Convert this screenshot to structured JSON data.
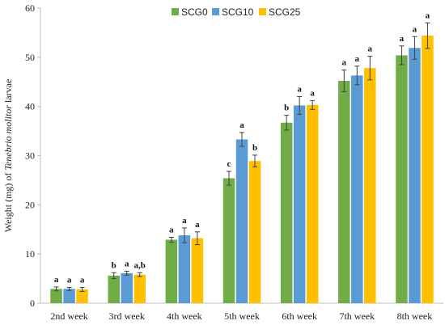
{
  "chart_data": {
    "type": "bar",
    "ylabel_prefix": "Weight (mg) of",
    "ylabel_species": "Tenebrio molitor",
    "ylabel_suffix": "larvae",
    "xlabel": "",
    "ylim": [
      0,
      60
    ],
    "yticks": [
      0,
      10,
      20,
      30,
      40,
      50,
      60
    ],
    "grid": false,
    "legend_position": "top-center",
    "categories": [
      "2nd week",
      "3rd week",
      "4th week",
      "5th week",
      "6th week",
      "7th week",
      "8th week"
    ],
    "series": [
      {
        "name": "SCG0",
        "color": "#70AD47",
        "values": [
          2.9,
          5.6,
          12.9,
          25.4,
          36.7,
          45.2,
          50.4
        ],
        "errors": [
          0.4,
          0.6,
          0.5,
          1.4,
          1.5,
          2.2,
          1.9
        ],
        "labels": [
          "a",
          "b",
          "a",
          "c",
          "b",
          "a",
          "a"
        ]
      },
      {
        "name": "SCG10",
        "color": "#5B9BD5",
        "values": [
          2.9,
          6.1,
          13.8,
          33.3,
          40.2,
          46.3,
          51.9
        ],
        "errors": [
          0.3,
          0.4,
          1.5,
          1.4,
          1.8,
          1.9,
          2.3
        ],
        "labels": [
          "a",
          "a",
          "a",
          "a",
          "a",
          "a",
          "a"
        ]
      },
      {
        "name": "SCG25",
        "color": "#FFC000",
        "values": [
          2.8,
          5.8,
          13.2,
          28.9,
          40.3,
          47.8,
          54.4
        ],
        "errors": [
          0.4,
          0.4,
          1.3,
          1.2,
          0.9,
          2.4,
          2.6
        ],
        "labels": [
          "a",
          "a,b",
          "a",
          "b",
          "a",
          "a",
          "a"
        ]
      }
    ]
  }
}
